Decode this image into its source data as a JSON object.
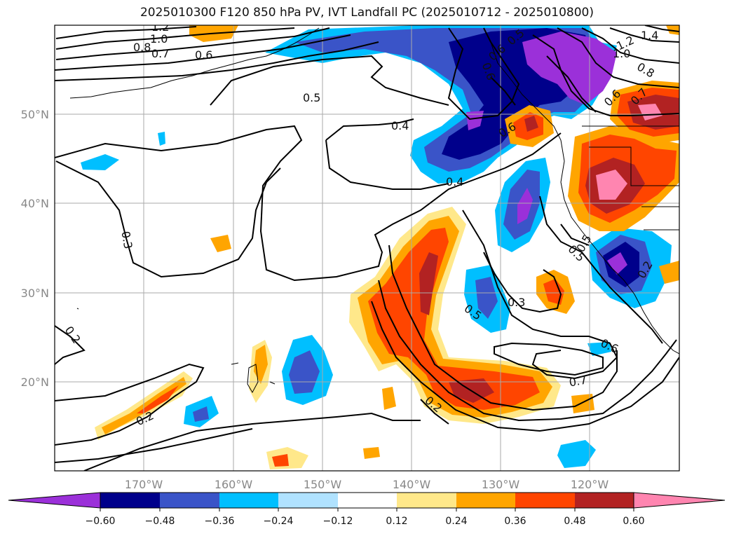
{
  "title": "2025010300 F120 850 hPa PV, IVT Landfall PC (2025010712 - 2025010800)",
  "map": {
    "lon_labels": [
      "170°W",
      "160°W",
      "150°W",
      "140°W",
      "130°W",
      "120°W"
    ],
    "lat_labels": [
      "50°N",
      "40°N",
      "30°N",
      "20°N"
    ],
    "grid": true
  },
  "contour_labels": [
    {
      "text": "1.2"
    },
    {
      "text": "1.0"
    },
    {
      "text": "0.8"
    },
    {
      "text": "0.7"
    },
    {
      "text": "0.6"
    },
    {
      "text": "0.5"
    },
    {
      "text": "0.4"
    },
    {
      "text": "0.4"
    },
    {
      "text": "0.3"
    },
    {
      "text": "0.2"
    },
    {
      "text": "0.2"
    },
    {
      "text": "0.2"
    },
    {
      "text": "0.3"
    },
    {
      "text": "0.5"
    },
    {
      "text": "0.6"
    },
    {
      "text": "0.7"
    },
    {
      "text": "0.5"
    },
    {
      "text": "0.6"
    },
    {
      "text": "0.7"
    },
    {
      "text": "1.4"
    },
    {
      "text": "1.2"
    },
    {
      "text": "1.0"
    },
    {
      "text": "0.8"
    },
    {
      "text": "0.6"
    },
    {
      "text": "0.5"
    },
    {
      "text": "0.6"
    },
    {
      "text": "0.6"
    },
    {
      "text": "0.5"
    },
    {
      "text": "0.2"
    }
  ],
  "colorbar": {
    "tick_labels": [
      "−0.60",
      "−0.48",
      "−0.36",
      "−0.24",
      "−0.12",
      "0.12",
      "0.24",
      "0.36",
      "0.48",
      "0.60"
    ],
    "colors": [
      "#9b30d9",
      "#00008b",
      "#3a54c8",
      "#00bfff",
      "#b0e2ff",
      "#ffffff",
      "#ffe88a",
      "#ffa500",
      "#ff4500",
      "#b22222",
      "#ff85b0"
    ]
  }
}
